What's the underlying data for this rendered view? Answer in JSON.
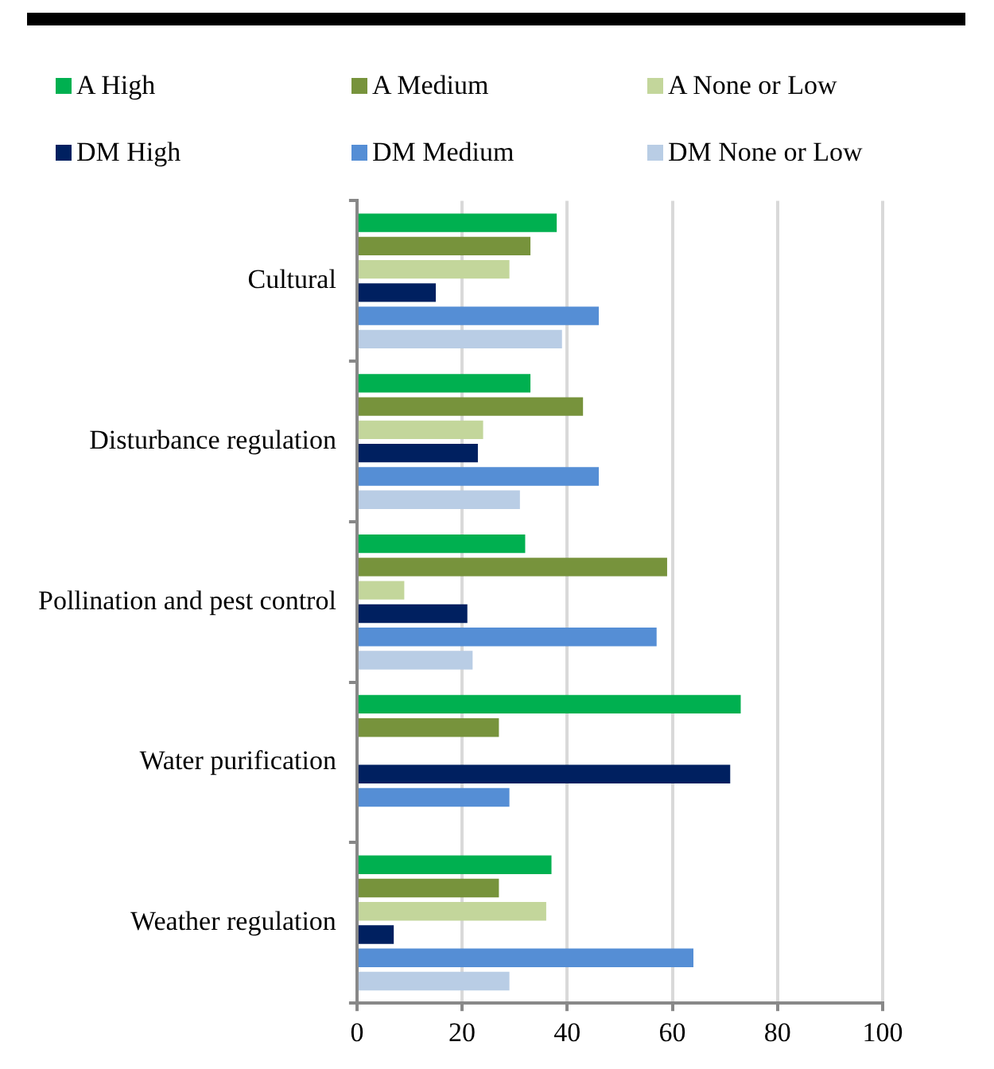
{
  "chart_data": {
    "type": "bar",
    "orientation": "horizontal",
    "categories": [
      "Cultural",
      "Disturbance regulation",
      "Pollination and pest control",
      "Water purification",
      "Weather regulation"
    ],
    "series": [
      {
        "name": "A High",
        "color": "#00b050",
        "values": [
          38,
          33,
          32,
          73,
          37
        ]
      },
      {
        "name": "A Medium",
        "color": "#77933c",
        "values": [
          33,
          43,
          59,
          27,
          27
        ]
      },
      {
        "name": "A None or Low",
        "color": "#c3d69b",
        "values": [
          29,
          24,
          9,
          0,
          36
        ]
      },
      {
        "name": "DM High",
        "color": "#002060",
        "values": [
          15,
          23,
          21,
          71,
          7
        ]
      },
      {
        "name": "DM Medium",
        "color": "#558ed5",
        "values": [
          46,
          46,
          57,
          29,
          64
        ]
      },
      {
        "name": "DM None or Low",
        "color": "#b9cde5",
        "values": [
          39,
          31,
          22,
          0,
          29
        ]
      }
    ],
    "xlim": [
      0,
      100
    ],
    "xticks": [
      0,
      20,
      40,
      60,
      80,
      100
    ],
    "grid": "x",
    "legend": "top"
  }
}
